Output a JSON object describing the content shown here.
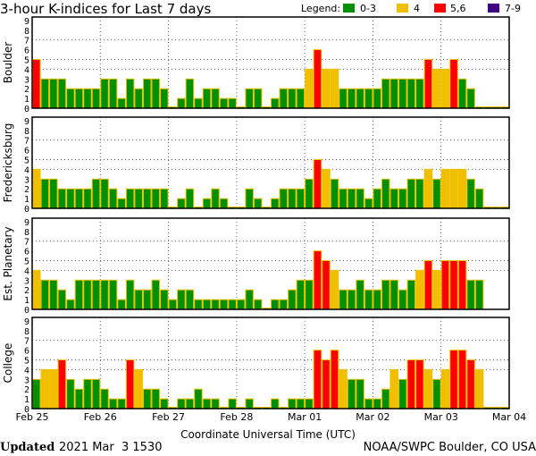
{
  "chart_data": {
    "type": "bar",
    "title": "3-hour K-indices for Last 7 days",
    "xlabel": "Coordinate Universal Time (UTC)",
    "ylim": [
      0,
      9
    ],
    "yticks": [
      "0",
      "1",
      "2",
      "3",
      "4",
      "5",
      "6",
      "7",
      "8",
      "9"
    ],
    "x_ticks": [
      "Feb 25",
      "Feb 26",
      "Feb 27",
      "Feb 28",
      "Mar 01",
      "Mar 02",
      "Mar 03",
      "Mar 04"
    ],
    "bars_per_day": 8,
    "legend": {
      "label": "Legend:",
      "items": [
        {
          "label": "0-3",
          "color": "#009000"
        },
        {
          "label": "4",
          "color": "#f0c000"
        },
        {
          "label": "5,6",
          "color": "#ff0000"
        },
        {
          "label": "7-9",
          "color": "#400080"
        }
      ]
    },
    "panels": [
      {
        "name": "Boulder",
        "values": [
          5,
          3,
          3,
          3,
          2,
          2,
          2,
          2,
          3,
          3,
          1,
          3,
          2,
          3,
          3,
          2,
          0,
          1,
          3,
          1,
          2,
          2,
          1,
          1,
          0,
          2,
          2,
          0,
          1,
          2,
          2,
          2,
          4,
          6,
          4,
          4,
          2,
          2,
          2,
          2,
          2,
          3,
          3,
          3,
          3,
          3,
          5,
          4,
          4,
          5,
          3,
          2,
          0,
          0,
          0,
          0
        ]
      },
      {
        "name": "Fredericksburg",
        "values": [
          4,
          3,
          3,
          2,
          2,
          2,
          2,
          3,
          3,
          2,
          1,
          2,
          2,
          2,
          2,
          2,
          0,
          1,
          2,
          0,
          1,
          2,
          1,
          0,
          0,
          2,
          1,
          0,
          1,
          2,
          2,
          2,
          3,
          5,
          4,
          3,
          2,
          2,
          2,
          1,
          2,
          3,
          2,
          2,
          3,
          3,
          4,
          3,
          4,
          4,
          4,
          3,
          2,
          0,
          0,
          0
        ]
      },
      {
        "name": "Est. Planetary",
        "values": [
          4,
          3,
          3,
          2,
          1,
          3,
          3,
          3,
          3,
          3,
          1,
          3,
          2,
          2,
          3,
          2,
          1,
          2,
          2,
          1,
          1,
          1,
          1,
          1,
          1,
          2,
          1,
          0,
          1,
          1,
          2,
          3,
          3,
          6,
          5,
          4,
          2,
          2,
          3,
          2,
          2,
          3,
          3,
          2,
          3,
          4,
          5,
          4,
          5,
          5,
          5,
          3,
          3,
          null,
          null,
          null
        ]
      },
      {
        "name": "College",
        "values": [
          3,
          4,
          4,
          5,
          3,
          2,
          3,
          3,
          2,
          1,
          1,
          5,
          4,
          2,
          2,
          1,
          0,
          1,
          1,
          2,
          1,
          1,
          0,
          1,
          0,
          1,
          0,
          0,
          1,
          0,
          1,
          1,
          1,
          6,
          5,
          6,
          4,
          3,
          3,
          1,
          1,
          2,
          4,
          3,
          5,
          5,
          4,
          3,
          4,
          6,
          6,
          5,
          4,
          0,
          0,
          0
        ]
      }
    ]
  },
  "footer": {
    "updated_label": "Updated",
    "updated_value": "2021 Mar  3 1530",
    "credit": "NOAA/SWPC Boulder, CO USA"
  }
}
